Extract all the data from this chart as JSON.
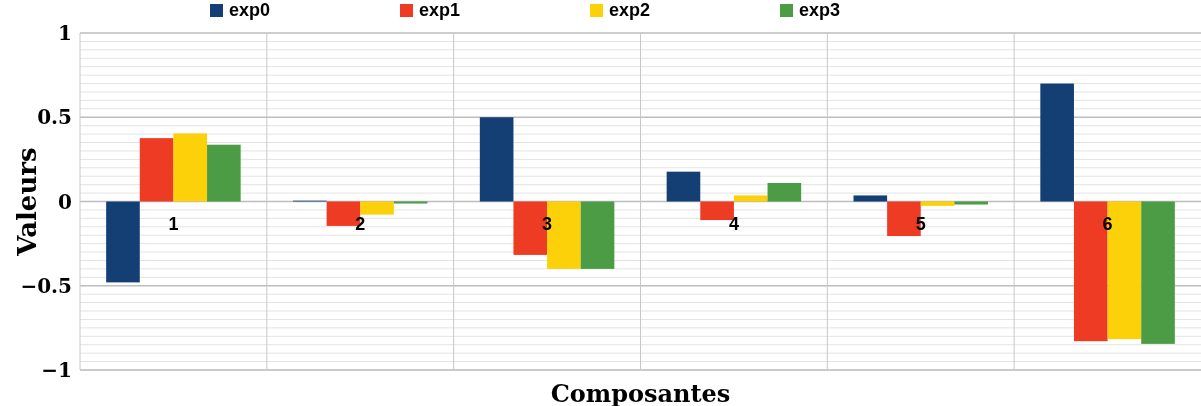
{
  "chart_data": {
    "type": "bar",
    "xlabel": "Composantes",
    "ylabel": "Valeurs",
    "categories": [
      "1",
      "2",
      "3",
      "4",
      "5",
      "6"
    ],
    "series": [
      {
        "name": "exp0",
        "color": "#143f75",
        "values": [
          -0.48,
          0.005,
          0.5,
          0.177,
          0.036,
          0.7
        ]
      },
      {
        "name": "exp1",
        "color": "#ee3b24",
        "values": [
          0.376,
          -0.145,
          -0.317,
          -0.11,
          -0.205,
          -0.829
        ]
      },
      {
        "name": "exp2",
        "color": "#fcd10a",
        "values": [
          0.404,
          -0.078,
          -0.4,
          0.036,
          -0.026,
          -0.817
        ]
      },
      {
        "name": "exp3",
        "color": "#4c9c45",
        "values": [
          0.337,
          -0.012,
          -0.4,
          0.11,
          -0.018,
          -0.845
        ]
      }
    ],
    "ylim": [
      -1,
      1
    ],
    "yticks": [
      {
        "value": -1,
        "label": "−1"
      },
      {
        "value": -0.95,
        "label": null
      },
      {
        "value": -0.9,
        "label": null
      },
      {
        "value": -0.85,
        "label": null
      },
      {
        "value": -0.8,
        "label": null
      },
      {
        "value": -0.75,
        "label": null
      },
      {
        "value": -0.7,
        "label": null
      },
      {
        "value": -0.65,
        "label": null
      },
      {
        "value": -0.6,
        "label": null
      },
      {
        "value": -0.55,
        "label": null
      },
      {
        "value": -0.5,
        "label": "−0.5"
      },
      {
        "value": -0.45,
        "label": null
      },
      {
        "value": -0.4,
        "label": null
      },
      {
        "value": -0.35,
        "label": null
      },
      {
        "value": -0.3,
        "label": null
      },
      {
        "value": -0.25,
        "label": null
      },
      {
        "value": -0.2,
        "label": null
      },
      {
        "value": -0.15,
        "label": null
      },
      {
        "value": -0.1,
        "label": null
      },
      {
        "value": -0.05,
        "label": null
      },
      0,
      {
        "value": 0.05,
        "label": null
      },
      {
        "value": 0.1,
        "label": null
      },
      {
        "value": 0.15,
        "label": null
      },
      {
        "value": 0.2,
        "label": null
      },
      {
        "value": 0.25,
        "label": null
      },
      {
        "value": 0.3,
        "label": null
      },
      {
        "value": 0.35,
        "label": null
      },
      {
        "value": 0.4,
        "label": null
      },
      {
        "value": 0.45,
        "label": null
      },
      0.5,
      {
        "value": 0.55,
        "label": null
      },
      {
        "value": 0.6,
        "label": null
      },
      {
        "value": 0.65,
        "label": null
      },
      {
        "value": 0.7,
        "label": null
      },
      {
        "value": 0.75,
        "label": null
      },
      {
        "value": 0.8,
        "label": null
      },
      {
        "value": 0.85,
        "label": null
      },
      {
        "value": 0.9,
        "label": null
      },
      {
        "value": 0.95,
        "label": null
      },
      1
    ],
    "grid": true,
    "legend": "top"
  }
}
